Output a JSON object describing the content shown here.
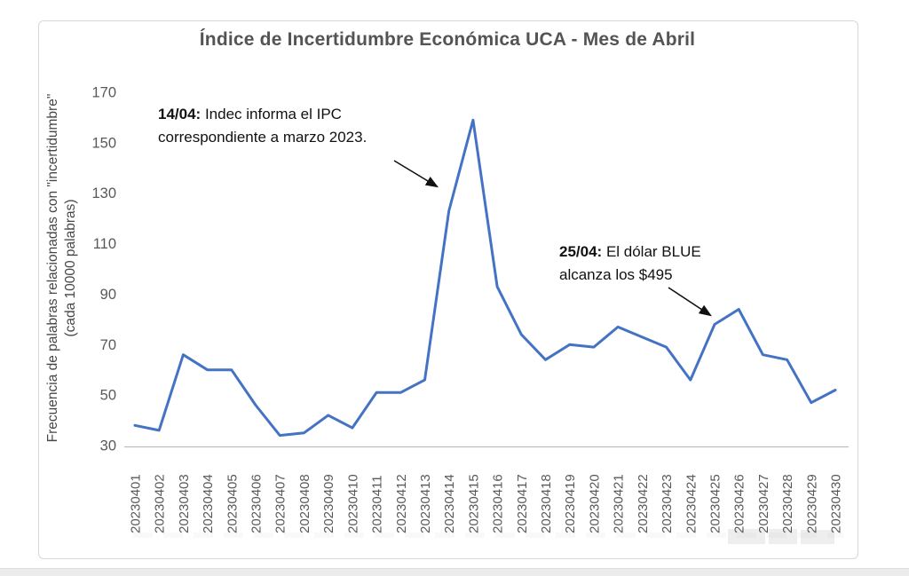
{
  "chart_data": {
    "type": "line",
    "title": "Índice de Incertidumbre Económica UCA - Mes de Abril",
    "xlabel": "",
    "ylabel": "Frecuencia de palabras relacionadas con \"incertidumbre\" (cada 10000 palabras)",
    "ylabel_line1": "Frecuencia de palabras relacionadas con \"incertidumbre\"",
    "ylabel_line2": "(cada 10000 palabras)",
    "ylim": [
      30,
      170
    ],
    "yticks": [
      30,
      50,
      70,
      90,
      110,
      130,
      150,
      170
    ],
    "grid": false,
    "legend": false,
    "line_color": "#4472C4",
    "categories": [
      "20230401",
      "20230402",
      "20230403",
      "20230404",
      "20230405",
      "20230406",
      "20230407",
      "20230408",
      "20230409",
      "20230410",
      "20230411",
      "20230412",
      "20230413",
      "20230414",
      "20230415",
      "20230416",
      "20230417",
      "20230418",
      "20230419",
      "20230420",
      "20230421",
      "20230422",
      "20230423",
      "20230424",
      "20230425",
      "20230426",
      "20230427",
      "20230428",
      "20230429",
      "20230430"
    ],
    "values": [
      38,
      36,
      66,
      60,
      60,
      46,
      34,
      35,
      42,
      37,
      51,
      51,
      56,
      123,
      159,
      93,
      74,
      64,
      70,
      69,
      77,
      73,
      69,
      56,
      78,
      84,
      66,
      64,
      47,
      52
    ],
    "annotations": [
      {
        "date_label": "14/04:",
        "text": "Indec informa el IPC correspondiente a marzo 2023.",
        "points_to": "20230414"
      },
      {
        "date_label": "25/04:",
        "text": "El dólar BLUE alcanza los $495",
        "points_to": "20230425"
      }
    ]
  }
}
